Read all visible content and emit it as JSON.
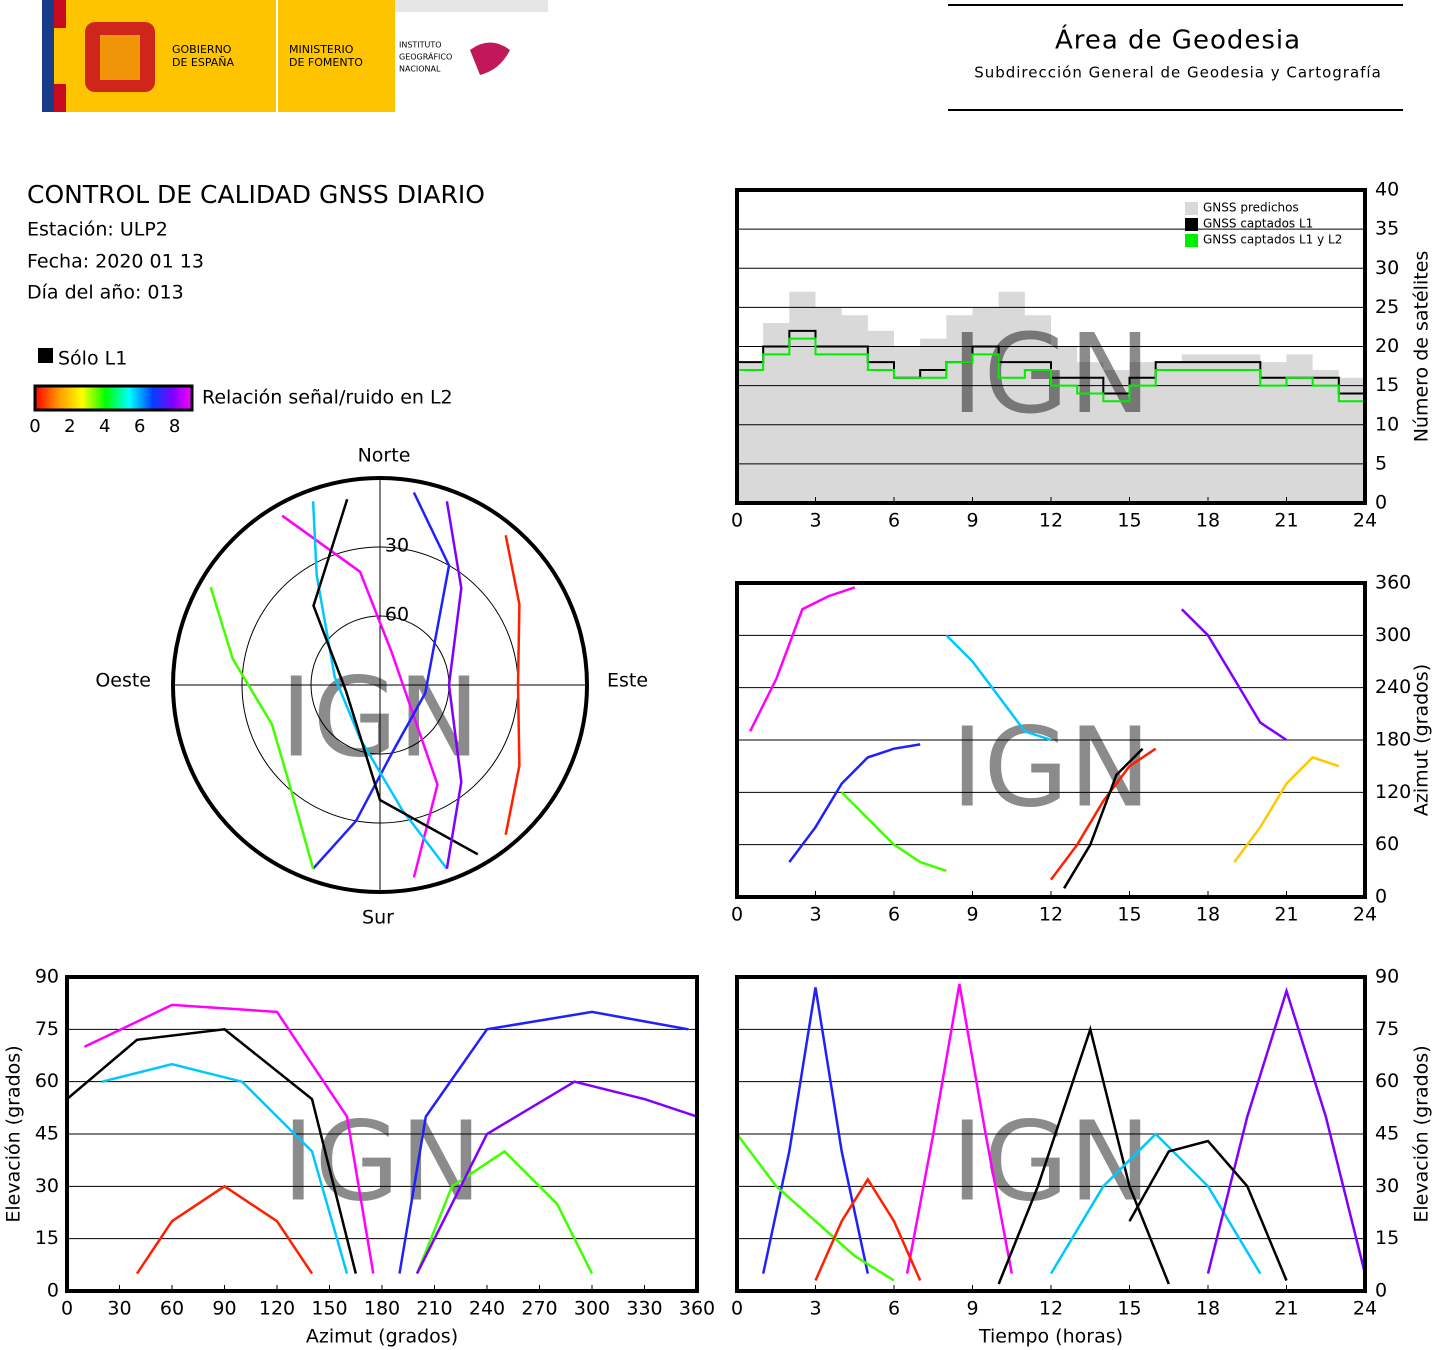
{
  "header": {
    "gobierno": [
      "GOBIERNO",
      "DE ESPAÑA"
    ],
    "ministerio": [
      "MINISTERIO",
      "DE FOMENTO"
    ],
    "instituto": [
      "INSTITUTO",
      "GEOGRÁFICO",
      "NACIONAL"
    ],
    "title": "Área de Geodesia",
    "subtitle": "Subdirección General de Geodesia y Cartografía"
  },
  "report": {
    "title": "CONTROL DE CALIDAD GNSS DIARIO",
    "station": "Estación: ULP2",
    "date": "Fecha: 2020 01 13",
    "doy": "Día del año: 013"
  },
  "legend": {
    "l1_only": "Sólo L1",
    "snr": "Relación señal/ruido en L2",
    "snr_lim": [
      0,
      9
    ],
    "snr_ticks": [
      0,
      2,
      4,
      6,
      8
    ]
  },
  "watermark": "IGN",
  "chart_data": [
    {
      "type": "polar",
      "directions": {
        "north": "Norte",
        "south": "Sur",
        "east": "Este",
        "west": "Oeste"
      },
      "rlim": [
        90,
        0
      ],
      "rticks": [
        30,
        60
      ],
      "series": [
        {
          "color": "#ff00ff",
          "az": [
            330,
            350,
            20,
            90,
            150,
            170
          ],
          "el": [
            5,
            40,
            75,
            80,
            40,
            5
          ]
        },
        {
          "color": "#2020ff",
          "az": [
            200,
            190,
            170,
            100,
            30,
            10
          ],
          "el": [
            5,
            30,
            60,
            70,
            30,
            5
          ]
        },
        {
          "color": "#00c8ff",
          "az": [
            160,
            170,
            200,
            280,
            330,
            340
          ],
          "el": [
            5,
            35,
            65,
            70,
            35,
            5
          ]
        },
        {
          "color": "#40ff00",
          "az": [
            300,
            280,
            250,
            220,
            200
          ],
          "el": [
            5,
            25,
            40,
            30,
            5
          ]
        },
        {
          "color": "#ff2000",
          "az": [
            40,
            60,
            90,
            120,
            140
          ],
          "el": [
            5,
            20,
            30,
            20,
            5
          ]
        },
        {
          "color": "#000000",
          "az": [
            150,
            180,
            260,
            320,
            350
          ],
          "el": [
            5,
            40,
            75,
            45,
            8
          ]
        },
        {
          "color": "#8000ff",
          "az": [
            20,
            40,
            90,
            140,
            160
          ],
          "el": [
            5,
            35,
            60,
            35,
            5
          ]
        }
      ]
    },
    {
      "type": "step",
      "ylabel": "Número de satélites",
      "x": [
        0,
        1,
        2,
        3,
        4,
        5,
        6,
        7,
        8,
        9,
        10,
        11,
        12,
        13,
        14,
        15,
        16,
        17,
        18,
        19,
        20,
        21,
        22,
        23,
        24
      ],
      "xlim": [
        0,
        24
      ],
      "xticks": [
        0,
        3,
        6,
        9,
        12,
        15,
        18,
        21,
        24
      ],
      "ylim": [
        0,
        40
      ],
      "yticks": [
        0,
        5,
        10,
        15,
        20,
        25,
        30,
        35,
        40
      ],
      "grid": true,
      "yaxis_side": "right",
      "legend": "upper right",
      "series": [
        {
          "name": "GNSS predichos",
          "color": "#d9d9d9",
          "fill": true,
          "values": [
            18,
            23,
            27,
            25,
            24,
            22,
            20,
            21,
            24,
            25,
            27,
            24,
            20,
            18,
            17,
            18,
            18,
            19,
            19,
            19,
            18,
            19,
            17,
            16,
            18
          ]
        },
        {
          "name": "GNSS captados L1",
          "color": "#000000",
          "values": [
            18,
            20,
            22,
            20,
            20,
            18,
            16,
            17,
            18,
            20,
            18,
            18,
            16,
            16,
            14,
            16,
            18,
            18,
            18,
            18,
            16,
            16,
            16,
            14,
            18
          ]
        },
        {
          "name": "GNSS captados L1 y L2",
          "color": "#00ee00",
          "values": [
            17,
            19,
            21,
            19,
            19,
            17,
            16,
            16,
            18,
            19,
            16,
            17,
            15,
            14,
            13,
            15,
            17,
            17,
            17,
            17,
            15,
            16,
            15,
            13,
            17
          ]
        }
      ]
    },
    {
      "type": "line",
      "ylabel": "Azimut (grados)",
      "xlim": [
        0,
        24
      ],
      "xticks": [
        0,
        3,
        6,
        9,
        12,
        15,
        18,
        21,
        24
      ],
      "ylim": [
        0,
        360
      ],
      "yticks": [
        0,
        60,
        120,
        180,
        240,
        300,
        360
      ],
      "grid": true,
      "yaxis_side": "right",
      "series": [
        {
          "color": "#ff00ff",
          "x": [
            0.5,
            1.5,
            2.5,
            3.5,
            4.5
          ],
          "values": [
            190,
            250,
            330,
            345,
            355
          ]
        },
        {
          "color": "#2020ff",
          "x": [
            2,
            3,
            4,
            5,
            6,
            7
          ],
          "values": [
            40,
            80,
            130,
            160,
            170,
            175
          ]
        },
        {
          "color": "#00c8ff",
          "x": [
            8,
            9,
            10,
            11,
            12
          ],
          "values": [
            300,
            270,
            230,
            190,
            180
          ]
        },
        {
          "color": "#40ff00",
          "x": [
            4,
            5,
            6,
            7,
            8
          ],
          "values": [
            120,
            90,
            60,
            40,
            30
          ]
        },
        {
          "color": "#ff2000",
          "x": [
            12,
            13,
            14,
            15,
            16
          ],
          "values": [
            20,
            60,
            110,
            150,
            170
          ]
        },
        {
          "color": "#000000",
          "x": [
            12.5,
            13.5,
            14.5,
            15.5
          ],
          "values": [
            10,
            60,
            140,
            170
          ]
        },
        {
          "color": "#8000ff",
          "x": [
            17,
            18,
            19,
            20,
            21
          ],
          "values": [
            330,
            300,
            250,
            200,
            180
          ]
        },
        {
          "color": "#ffc800",
          "x": [
            19,
            20,
            21,
            22,
            23
          ],
          "values": [
            40,
            80,
            130,
            160,
            150
          ]
        }
      ]
    },
    {
      "type": "line",
      "xlabel": "Azimut (grados)",
      "ylabel": "Elevación (grados)",
      "xlim": [
        0,
        360
      ],
      "xticks": [
        0,
        30,
        60,
        90,
        120,
        150,
        180,
        210,
        240,
        270,
        300,
        330,
        360
      ],
      "ylim": [
        0,
        90
      ],
      "yticks": [
        0,
        15,
        30,
        45,
        60,
        75,
        90
      ],
      "grid": true,
      "yaxis_side": "left",
      "series": [
        {
          "color": "#ff00ff",
          "x": [
            10,
            60,
            120,
            160,
            175
          ],
          "values": [
            70,
            82,
            80,
            50,
            5
          ]
        },
        {
          "color": "#2020ff",
          "x": [
            190,
            205,
            240,
            300,
            355
          ],
          "values": [
            5,
            50,
            75,
            80,
            75
          ]
        },
        {
          "color": "#00c8ff",
          "x": [
            20,
            60,
            100,
            140,
            160
          ],
          "values": [
            60,
            65,
            60,
            40,
            5
          ]
        },
        {
          "color": "#40ff00",
          "x": [
            200,
            220,
            250,
            280,
            300
          ],
          "values": [
            5,
            30,
            40,
            25,
            5
          ]
        },
        {
          "color": "#ff2000",
          "x": [
            40,
            60,
            90,
            120,
            140
          ],
          "values": [
            5,
            20,
            30,
            20,
            5
          ]
        },
        {
          "color": "#000000",
          "x": [
            0,
            40,
            90,
            140,
            165
          ],
          "values": [
            55,
            72,
            75,
            55,
            5
          ]
        },
        {
          "color": "#8000ff",
          "x": [
            200,
            240,
            290,
            330,
            360
          ],
          "values": [
            5,
            45,
            60,
            55,
            50
          ]
        }
      ]
    },
    {
      "type": "line",
      "xlabel": "Tiempo (horas)",
      "ylabel": "Elevación (grados)",
      "xlim": [
        0,
        24
      ],
      "xticks": [
        0,
        3,
        6,
        9,
        12,
        15,
        18,
        21,
        24
      ],
      "ylim": [
        0,
        90
      ],
      "yticks": [
        0,
        15,
        30,
        45,
        60,
        75,
        90
      ],
      "grid": true,
      "yaxis_side": "right",
      "series": [
        {
          "color": "#2020ff",
          "x": [
            1,
            2,
            3,
            4,
            5
          ],
          "values": [
            5,
            40,
            87,
            40,
            5
          ]
        },
        {
          "color": "#ff00ff",
          "x": [
            6.5,
            7.5,
            8.5,
            9.5,
            10.5
          ],
          "values": [
            5,
            45,
            88,
            45,
            5
          ]
        },
        {
          "color": "#000000",
          "x": [
            10,
            11.5,
            13.5,
            15,
            16.5
          ],
          "values": [
            2,
            30,
            75,
            30,
            2
          ]
        },
        {
          "color": "#00c8ff",
          "x": [
            12,
            14,
            16,
            18,
            20
          ],
          "values": [
            5,
            30,
            45,
            30,
            5
          ]
        },
        {
          "color": "#40ff00",
          "x": [
            0,
            1.5,
            3,
            4.5,
            6
          ],
          "values": [
            45,
            30,
            20,
            10,
            3
          ]
        },
        {
          "color": "#ff2000",
          "x": [
            3,
            4,
            5,
            6,
            7
          ],
          "values": [
            3,
            20,
            32,
            20,
            3
          ]
        },
        {
          "color": "#8000ff",
          "x": [
            18,
            19.5,
            21,
            22.5,
            24
          ],
          "values": [
            5,
            50,
            86,
            50,
            5
          ]
        },
        {
          "color": "#000000",
          "x": [
            15,
            16.5,
            18,
            19.5,
            21
          ],
          "values": [
            20,
            40,
            43,
            30,
            3
          ]
        }
      ]
    }
  ]
}
